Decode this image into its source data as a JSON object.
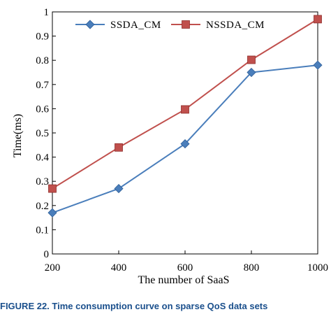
{
  "chart_data": {
    "type": "line",
    "x": [
      200,
      400,
      600,
      800,
      1000
    ],
    "series": [
      {
        "name": "SSDA_CM",
        "values": [
          0.17,
          0.27,
          0.455,
          0.75,
          0.78
        ],
        "color": "#4a7ebb",
        "marker": "diamond"
      },
      {
        "name": "NSSDA_CM",
        "values": [
          0.27,
          0.44,
          0.597,
          0.802,
          0.97
        ],
        "color": "#c0504d",
        "marker": "square"
      }
    ],
    "xlabel": "The number of SaaS",
    "ylabel": "Time(ms)",
    "xlim": [
      200,
      1000
    ],
    "ylim": [
      0,
      1
    ],
    "xticks": [
      "200",
      "400",
      "600",
      "800",
      "1000"
    ],
    "yticks": [
      "0",
      "0.1",
      "0.2",
      "0.3",
      "0.4",
      "0.5",
      "0.6",
      "0.7",
      "0.8",
      "0.9",
      "1"
    ],
    "grid": false,
    "legend_position": "top"
  },
  "caption": "FIGURE 22. Time consumption curve on sparse QoS data sets"
}
